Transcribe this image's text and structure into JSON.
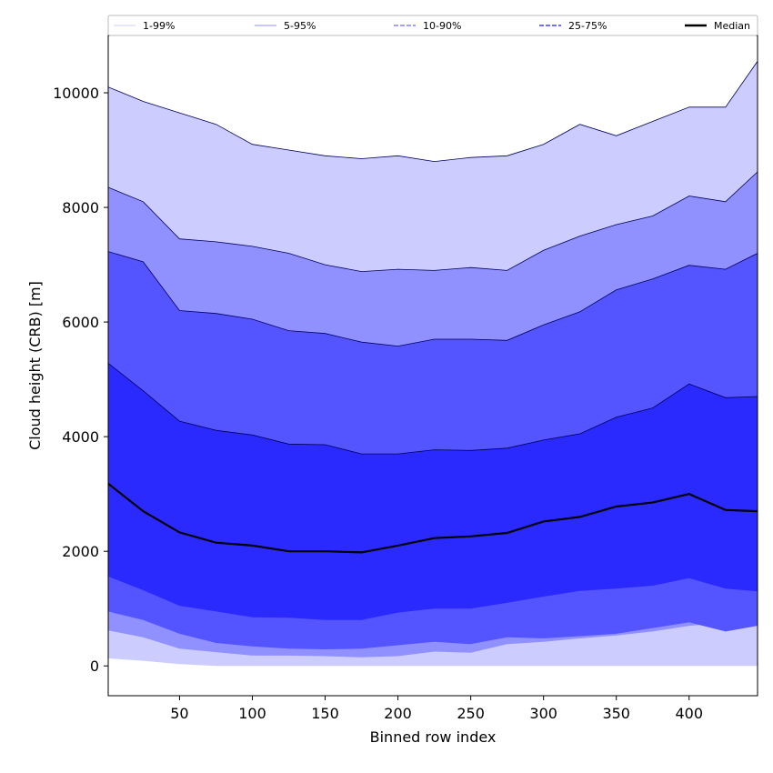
{
  "chart_data": {
    "type": "area",
    "title": "",
    "xlabel": "Binned row index",
    "ylabel": "Cloud height (CRB) [m]",
    "xlim": [
      1,
      447
    ],
    "ylim": [
      -520,
      11000
    ],
    "x_ticks": [
      50,
      100,
      150,
      200,
      250,
      300,
      350,
      400
    ],
    "y_ticks": [
      0,
      2000,
      4000,
      6000,
      8000,
      10000
    ],
    "x": [
      1,
      25,
      50,
      75,
      100,
      125,
      150,
      175,
      200,
      225,
      250,
      275,
      300,
      325,
      350,
      375,
      400,
      425,
      447
    ],
    "percentiles": {
      "p1": [
        130,
        90,
        30,
        0,
        0,
        0,
        0,
        0,
        0,
        0,
        0,
        0,
        0,
        0,
        0,
        0,
        0,
        0,
        0
      ],
      "p5": [
        620,
        500,
        300,
        240,
        180,
        180,
        170,
        150,
        170,
        250,
        230,
        380,
        420,
        480,
        530,
        600,
        700,
        750,
        800
      ],
      "p10": [
        950,
        800,
        560,
        400,
        340,
        300,
        290,
        300,
        360,
        420,
        380,
        500,
        480,
        520,
        560,
        660,
        760,
        600,
        700
      ],
      "p25": [
        1560,
        1320,
        1050,
        950,
        850,
        840,
        800,
        800,
        930,
        1000,
        1000,
        1100,
        1210,
        1310,
        1350,
        1400,
        1530,
        1350,
        1300
      ],
      "median": [
        3180,
        2700,
        2330,
        2150,
        2100,
        2000,
        2000,
        1980,
        2100,
        2230,
        2260,
        2320,
        2520,
        2600,
        2780,
        2850,
        3000,
        2720,
        2700
      ],
      "p75": [
        5280,
        4800,
        4270,
        4110,
        4030,
        3870,
        3860,
        3700,
        3700,
        3770,
        3760,
        3800,
        3940,
        4050,
        4340,
        4500,
        4920,
        4680,
        4700
      ],
      "p90": [
        7230,
        7050,
        6200,
        6150,
        6050,
        5850,
        5800,
        5650,
        5580,
        5700,
        5700,
        5680,
        5950,
        6180,
        6560,
        6750,
        6990,
        6920,
        7200
      ],
      "p95": [
        8350,
        8100,
        7450,
        7400,
        7320,
        7200,
        7000,
        6880,
        6920,
        6900,
        6950,
        6900,
        7250,
        7500,
        7700,
        7850,
        8200,
        8100,
        8620
      ],
      "p99": [
        10100,
        9850,
        9650,
        9450,
        9100,
        9000,
        8900,
        8850,
        8900,
        8800,
        8870,
        8900,
        9100,
        9450,
        9250,
        9500,
        9750,
        9750,
        10550
      ]
    },
    "bands": [
      {
        "lower": "p1",
        "upper": "p99",
        "color": "#ccccff"
      },
      {
        "lower": "p5",
        "upper": "p95",
        "color": "#9090ff"
      },
      {
        "lower": "p10",
        "upper": "p90",
        "color": "#5555ff"
      },
      {
        "lower": "p25",
        "upper": "p75",
        "color": "#2a2aff"
      }
    ],
    "legend": {
      "placement": "top",
      "entries": [
        {
          "label": "1-99%",
          "style": "thin",
          "color": "#ccccff"
        },
        {
          "label": "5-95%",
          "style": "thin",
          "color": "#9090ff"
        },
        {
          "label": "10-90%",
          "style": "dashed",
          "color": "#8080ff"
        },
        {
          "label": "25-75%",
          "style": "dashed",
          "color": "#4040ff"
        },
        {
          "label": "Median",
          "style": "thick",
          "color": "#000000"
        }
      ]
    },
    "grid": false
  }
}
